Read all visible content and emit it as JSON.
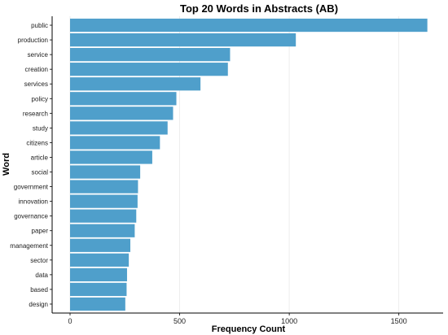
{
  "chart_data": {
    "type": "bar",
    "orientation": "horizontal",
    "title": "Top 20 Words in Abstracts (AB)",
    "xlabel": "Frequency Count",
    "ylabel": "Word",
    "xlim": [
      0,
      1700
    ],
    "xticks": [
      0,
      500,
      1000,
      1500
    ],
    "grid": true,
    "bar_color": "#4f9fcb",
    "categories": [
      "public",
      "production",
      "service",
      "creation",
      "services",
      "policy",
      "research",
      "study",
      "citizens",
      "article",
      "social",
      "government",
      "innovation",
      "governance",
      "paper",
      "management",
      "sector",
      "data",
      "based",
      "design"
    ],
    "values": [
      1630,
      1030,
      730,
      720,
      595,
      485,
      470,
      445,
      410,
      375,
      320,
      310,
      308,
      302,
      295,
      275,
      268,
      260,
      258,
      252
    ]
  }
}
